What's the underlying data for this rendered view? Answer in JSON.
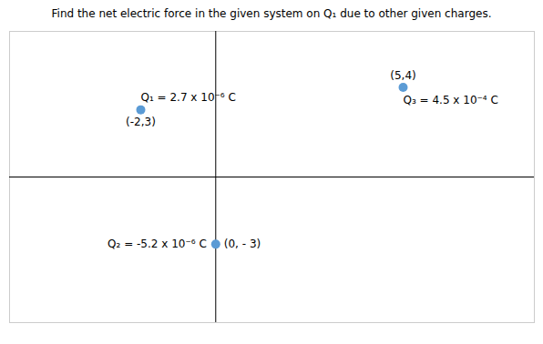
{
  "chart_data": {
    "type": "scatter",
    "title": "Find the net electric force in the given system on Q₁ due to other given charges.",
    "x": [
      -2,
      5,
      0
    ],
    "values": [
      3,
      4,
      -3
    ],
    "labels": [
      "Q₁ = 2.7 x 10⁻⁶ C",
      "Q₃ = 4.5 x 10⁻⁴ C",
      "Q₂ = -5.2 x 10⁻⁶ C"
    ],
    "coord_labels": [
      "(-2,3)",
      "(5,4)",
      "(0, - 3)"
    ],
    "color": "#5b9bd5",
    "xlim": [
      -5.5,
      8.5
    ],
    "ylim": [
      -6.5,
      6.5
    ],
    "tick_labels": false,
    "grid": false
  }
}
